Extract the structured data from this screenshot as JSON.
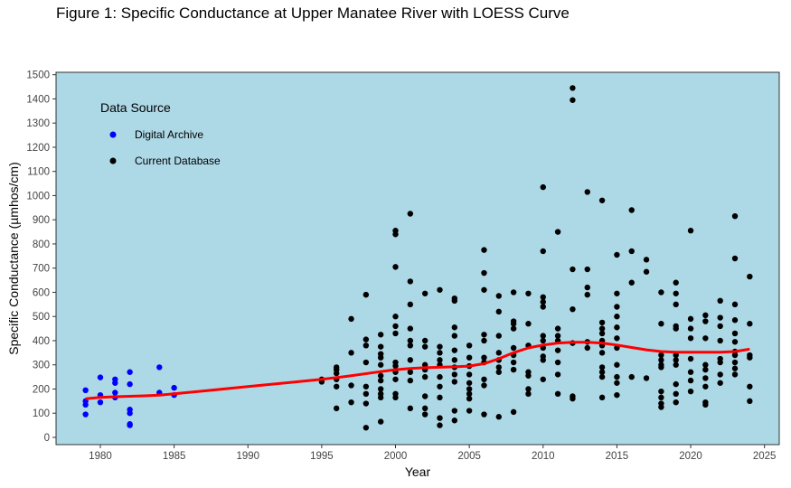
{
  "chart_data": {
    "type": "scatter",
    "title": "Figure 1: Specific Conductance at Upper Manatee River with LOESS Curve",
    "xlabel": "Year",
    "ylabel": "Specific Conductance (µmhos/cm)",
    "xlim": [
      1977,
      2026
    ],
    "ylim": [
      -30,
      1510
    ],
    "x_ticks": [
      1980,
      1985,
      1990,
      1995,
      2000,
      2005,
      2010,
      2015,
      2020,
      2025
    ],
    "y_ticks": [
      0,
      100,
      200,
      300,
      400,
      500,
      600,
      700,
      800,
      900,
      1000,
      1100,
      1200,
      1300,
      1400,
      1500
    ],
    "background_color": "#add8e6",
    "grid": false,
    "legend": {
      "title": "Data Source",
      "placement": "top-left",
      "entries": [
        {
          "name": "Digital Archive",
          "color": "#0000ff"
        },
        {
          "name": "Current Database",
          "color": "#000000"
        }
      ]
    },
    "series": [
      {
        "name": "Digital Archive",
        "color": "#0000ff",
        "points": [
          [
            1979,
            95
          ],
          [
            1979,
            135
          ],
          [
            1979,
            150
          ],
          [
            1979,
            195
          ],
          [
            1980,
            145
          ],
          [
            1980,
            175
          ],
          [
            1980,
            248
          ],
          [
            1981,
            165
          ],
          [
            1981,
            185
          ],
          [
            1981,
            225
          ],
          [
            1981,
            240
          ],
          [
            1982,
            50
          ],
          [
            1982,
            55
          ],
          [
            1982,
            100
          ],
          [
            1982,
            115
          ],
          [
            1982,
            220
          ],
          [
            1982,
            270
          ],
          [
            1984,
            185
          ],
          [
            1984,
            290
          ],
          [
            1985,
            175
          ],
          [
            1985,
            205
          ]
        ]
      },
      {
        "name": "Current Database",
        "color": "#000000",
        "points": [
          [
            1995,
            230
          ],
          [
            1995,
            240
          ],
          [
            1996,
            120
          ],
          [
            1996,
            210
          ],
          [
            1996,
            240
          ],
          [
            1996,
            265
          ],
          [
            1996,
            280
          ],
          [
            1996,
            290
          ],
          [
            1997,
            145
          ],
          [
            1997,
            215
          ],
          [
            1997,
            350
          ],
          [
            1997,
            490
          ],
          [
            1998,
            40
          ],
          [
            1998,
            140
          ],
          [
            1998,
            180
          ],
          [
            1998,
            210
          ],
          [
            1998,
            310
          ],
          [
            1998,
            380
          ],
          [
            1998,
            405
          ],
          [
            1998,
            590
          ],
          [
            1999,
            65
          ],
          [
            1999,
            165
          ],
          [
            1999,
            180
          ],
          [
            1999,
            200
          ],
          [
            1999,
            235
          ],
          [
            1999,
            255
          ],
          [
            1999,
            300
          ],
          [
            1999,
            330
          ],
          [
            1999,
            345
          ],
          [
            1999,
            375
          ],
          [
            1999,
            425
          ],
          [
            2000,
            165
          ],
          [
            2000,
            180
          ],
          [
            2000,
            240
          ],
          [
            2000,
            270
          ],
          [
            2000,
            295
          ],
          [
            2000,
            310
          ],
          [
            2000,
            430
          ],
          [
            2000,
            460
          ],
          [
            2000,
            500
          ],
          [
            2000,
            705
          ],
          [
            2000,
            840
          ],
          [
            2000,
            855
          ],
          [
            2001,
            120
          ],
          [
            2001,
            235
          ],
          [
            2001,
            270
          ],
          [
            2001,
            320
          ],
          [
            2001,
            380
          ],
          [
            2001,
            400
          ],
          [
            2001,
            450
          ],
          [
            2001,
            550
          ],
          [
            2001,
            645
          ],
          [
            2001,
            925
          ],
          [
            2002,
            95
          ],
          [
            2002,
            120
          ],
          [
            2002,
            170
          ],
          [
            2002,
            250
          ],
          [
            2002,
            280
          ],
          [
            2002,
            300
          ],
          [
            2002,
            375
          ],
          [
            2002,
            400
          ],
          [
            2002,
            595
          ],
          [
            2003,
            50
          ],
          [
            2003,
            80
          ],
          [
            2003,
            165
          ],
          [
            2003,
            210
          ],
          [
            2003,
            250
          ],
          [
            2003,
            300
          ],
          [
            2003,
            320
          ],
          [
            2003,
            350
          ],
          [
            2003,
            375
          ],
          [
            2003,
            610
          ],
          [
            2004,
            70
          ],
          [
            2004,
            110
          ],
          [
            2004,
            230
          ],
          [
            2004,
            260
          ],
          [
            2004,
            290
          ],
          [
            2004,
            320
          ],
          [
            2004,
            360
          ],
          [
            2004,
            420
          ],
          [
            2004,
            455
          ],
          [
            2004,
            565
          ],
          [
            2004,
            575
          ],
          [
            2005,
            110
          ],
          [
            2005,
            160
          ],
          [
            2005,
            180
          ],
          [
            2005,
            200
          ],
          [
            2005,
            225
          ],
          [
            2005,
            260
          ],
          [
            2005,
            295
          ],
          [
            2005,
            330
          ],
          [
            2005,
            380
          ],
          [
            2006,
            95
          ],
          [
            2006,
            215
          ],
          [
            2006,
            240
          ],
          [
            2006,
            310
          ],
          [
            2006,
            330
          ],
          [
            2006,
            400
          ],
          [
            2006,
            425
          ],
          [
            2006,
            610
          ],
          [
            2006,
            680
          ],
          [
            2006,
            775
          ],
          [
            2007,
            85
          ],
          [
            2007,
            270
          ],
          [
            2007,
            290
          ],
          [
            2007,
            320
          ],
          [
            2007,
            350
          ],
          [
            2007,
            420
          ],
          [
            2007,
            520
          ],
          [
            2007,
            585
          ],
          [
            2008,
            105
          ],
          [
            2008,
            280
          ],
          [
            2008,
            310
          ],
          [
            2008,
            340
          ],
          [
            2008,
            370
          ],
          [
            2008,
            450
          ],
          [
            2008,
            470
          ],
          [
            2008,
            480
          ],
          [
            2008,
            600
          ],
          [
            2009,
            180
          ],
          [
            2009,
            200
          ],
          [
            2009,
            255
          ],
          [
            2009,
            270
          ],
          [
            2009,
            380
          ],
          [
            2009,
            470
          ],
          [
            2009,
            595
          ],
          [
            2010,
            240
          ],
          [
            2010,
            320
          ],
          [
            2010,
            335
          ],
          [
            2010,
            370
          ],
          [
            2010,
            400
          ],
          [
            2010,
            420
          ],
          [
            2010,
            540
          ],
          [
            2010,
            560
          ],
          [
            2010,
            580
          ],
          [
            2010,
            770
          ],
          [
            2010,
            1035
          ],
          [
            2011,
            180
          ],
          [
            2011,
            260
          ],
          [
            2011,
            310
          ],
          [
            2011,
            360
          ],
          [
            2011,
            400
          ],
          [
            2011,
            420
          ],
          [
            2011,
            450
          ],
          [
            2011,
            850
          ],
          [
            2012,
            160
          ],
          [
            2012,
            170
          ],
          [
            2012,
            390
          ],
          [
            2012,
            530
          ],
          [
            2012,
            695
          ],
          [
            2012,
            1395
          ],
          [
            2012,
            1445
          ],
          [
            2013,
            370
          ],
          [
            2013,
            395
          ],
          [
            2013,
            590
          ],
          [
            2013,
            620
          ],
          [
            2013,
            695
          ],
          [
            2013,
            1015
          ],
          [
            2014,
            165
          ],
          [
            2014,
            250
          ],
          [
            2014,
            270
          ],
          [
            2014,
            290
          ],
          [
            2014,
            350
          ],
          [
            2014,
            380
          ],
          [
            2014,
            400
          ],
          [
            2014,
            430
          ],
          [
            2014,
            450
          ],
          [
            2014,
            475
          ],
          [
            2014,
            980
          ],
          [
            2015,
            175
          ],
          [
            2015,
            225
          ],
          [
            2015,
            250
          ],
          [
            2015,
            300
          ],
          [
            2015,
            370
          ],
          [
            2015,
            410
          ],
          [
            2015,
            455
          ],
          [
            2015,
            500
          ],
          [
            2015,
            540
          ],
          [
            2015,
            595
          ],
          [
            2015,
            755
          ],
          [
            2016,
            250
          ],
          [
            2016,
            640
          ],
          [
            2016,
            770
          ],
          [
            2016,
            940
          ],
          [
            2017,
            245
          ],
          [
            2017,
            685
          ],
          [
            2017,
            735
          ],
          [
            2018,
            125
          ],
          [
            2018,
            140
          ],
          [
            2018,
            165
          ],
          [
            2018,
            190
          ],
          [
            2018,
            290
          ],
          [
            2018,
            300
          ],
          [
            2018,
            320
          ],
          [
            2018,
            340
          ],
          [
            2018,
            470
          ],
          [
            2018,
            600
          ],
          [
            2019,
            145
          ],
          [
            2019,
            180
          ],
          [
            2019,
            220
          ],
          [
            2019,
            300
          ],
          [
            2019,
            320
          ],
          [
            2019,
            340
          ],
          [
            2019,
            450
          ],
          [
            2019,
            460
          ],
          [
            2019,
            550
          ],
          [
            2019,
            595
          ],
          [
            2019,
            640
          ],
          [
            2020,
            190
          ],
          [
            2020,
            235
          ],
          [
            2020,
            270
          ],
          [
            2020,
            325
          ],
          [
            2020,
            410
          ],
          [
            2020,
            450
          ],
          [
            2020,
            490
          ],
          [
            2020,
            855
          ],
          [
            2021,
            135
          ],
          [
            2021,
            145
          ],
          [
            2021,
            210
          ],
          [
            2021,
            245
          ],
          [
            2021,
            280
          ],
          [
            2021,
            300
          ],
          [
            2021,
            410
          ],
          [
            2021,
            480
          ],
          [
            2021,
            505
          ],
          [
            2022,
            225
          ],
          [
            2022,
            260
          ],
          [
            2022,
            310
          ],
          [
            2022,
            325
          ],
          [
            2022,
            400
          ],
          [
            2022,
            460
          ],
          [
            2022,
            495
          ],
          [
            2022,
            565
          ],
          [
            2023,
            260
          ],
          [
            2023,
            285
          ],
          [
            2023,
            310
          ],
          [
            2023,
            340
          ],
          [
            2023,
            355
          ],
          [
            2023,
            395
          ],
          [
            2023,
            430
          ],
          [
            2023,
            485
          ],
          [
            2023,
            550
          ],
          [
            2023,
            740
          ],
          [
            2023,
            915
          ],
          [
            2024,
            150
          ],
          [
            2024,
            210
          ],
          [
            2024,
            330
          ],
          [
            2024,
            340
          ],
          [
            2024,
            470
          ],
          [
            2024,
            665
          ]
        ]
      },
      {
        "name": "LOESS Curve",
        "color": "#ff0000",
        "line": true,
        "points": [
          [
            1979,
            160
          ],
          [
            1980,
            165
          ],
          [
            1981,
            168
          ],
          [
            1982,
            170
          ],
          [
            1983,
            172
          ],
          [
            1984,
            175
          ],
          [
            1985,
            180
          ],
          [
            1987,
            192
          ],
          [
            1990,
            210
          ],
          [
            1993,
            228
          ],
          [
            1995,
            240
          ],
          [
            1997,
            255
          ],
          [
            1999,
            272
          ],
          [
            2000,
            280
          ],
          [
            2001,
            285
          ],
          [
            2002,
            288
          ],
          [
            2003,
            290
          ],
          [
            2004,
            292
          ],
          [
            2005,
            295
          ],
          [
            2006,
            305
          ],
          [
            2007,
            325
          ],
          [
            2008,
            350
          ],
          [
            2009,
            370
          ],
          [
            2010,
            382
          ],
          [
            2011,
            390
          ],
          [
            2012,
            393
          ],
          [
            2013,
            393
          ],
          [
            2014,
            390
          ],
          [
            2015,
            382
          ],
          [
            2016,
            372
          ],
          [
            2017,
            362
          ],
          [
            2018,
            355
          ],
          [
            2019,
            352
          ],
          [
            2020,
            352
          ],
          [
            2021,
            352
          ],
          [
            2022,
            352
          ],
          [
            2023,
            355
          ],
          [
            2024,
            365
          ]
        ]
      }
    ]
  }
}
